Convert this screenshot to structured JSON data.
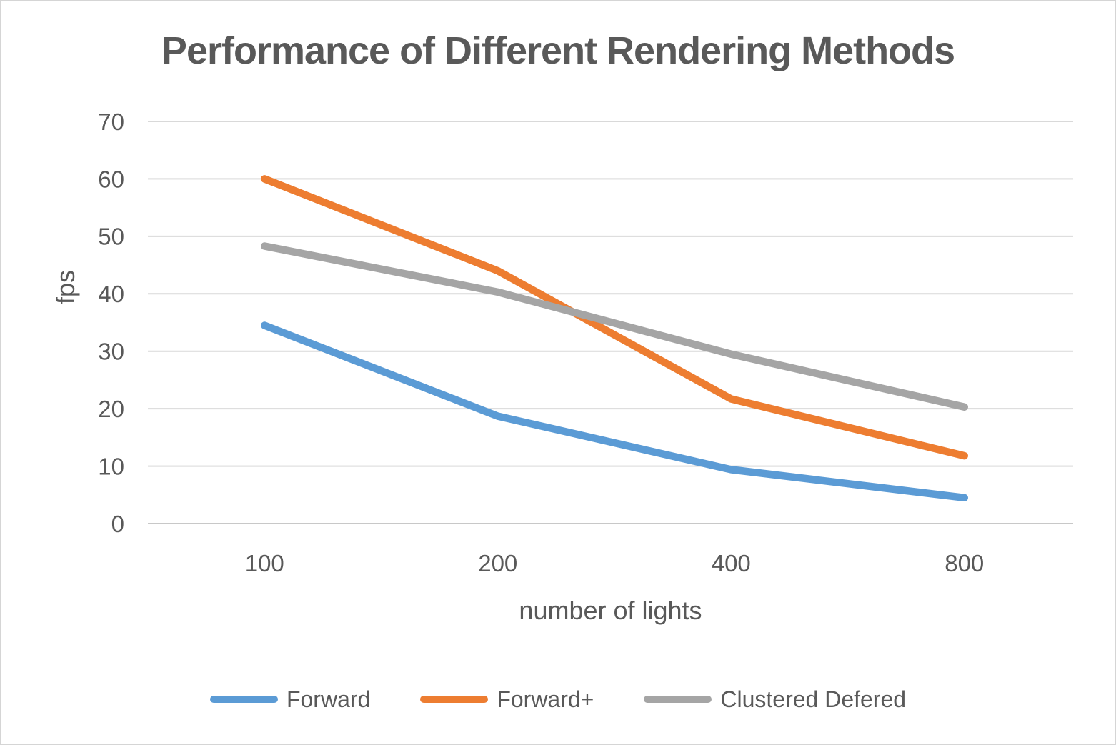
{
  "chart_data": {
    "type": "line",
    "title": "Performance of Different Rendering Methods",
    "xlabel": "number of lights",
    "ylabel": "fps",
    "categories": [
      "100",
      "200",
      "400",
      "800"
    ],
    "y_ticks": [
      0,
      10,
      20,
      30,
      40,
      50,
      60,
      70
    ],
    "ylim": [
      0,
      70
    ],
    "grid": "horizontal-only",
    "legend_position": "bottom",
    "series": [
      {
        "name": "Forward",
        "color": "#5B9BD5",
        "values": [
          34.5,
          18.7,
          9.4,
          4.5
        ]
      },
      {
        "name": "Forward+",
        "color": "#ED7D31",
        "values": [
          60,
          44,
          21.7,
          11.8
        ]
      },
      {
        "name": "Clustered Defered",
        "color": "#A5A5A5",
        "values": [
          48.3,
          40.3,
          29.5,
          20.3
        ]
      }
    ],
    "colors": {
      "gridline": "#D9D9D9",
      "axis_line": "#C8C8C8",
      "text": "#595959",
      "title": "#595959",
      "background": "#FFFFFF",
      "frame_border": "#D5D5D5"
    }
  }
}
